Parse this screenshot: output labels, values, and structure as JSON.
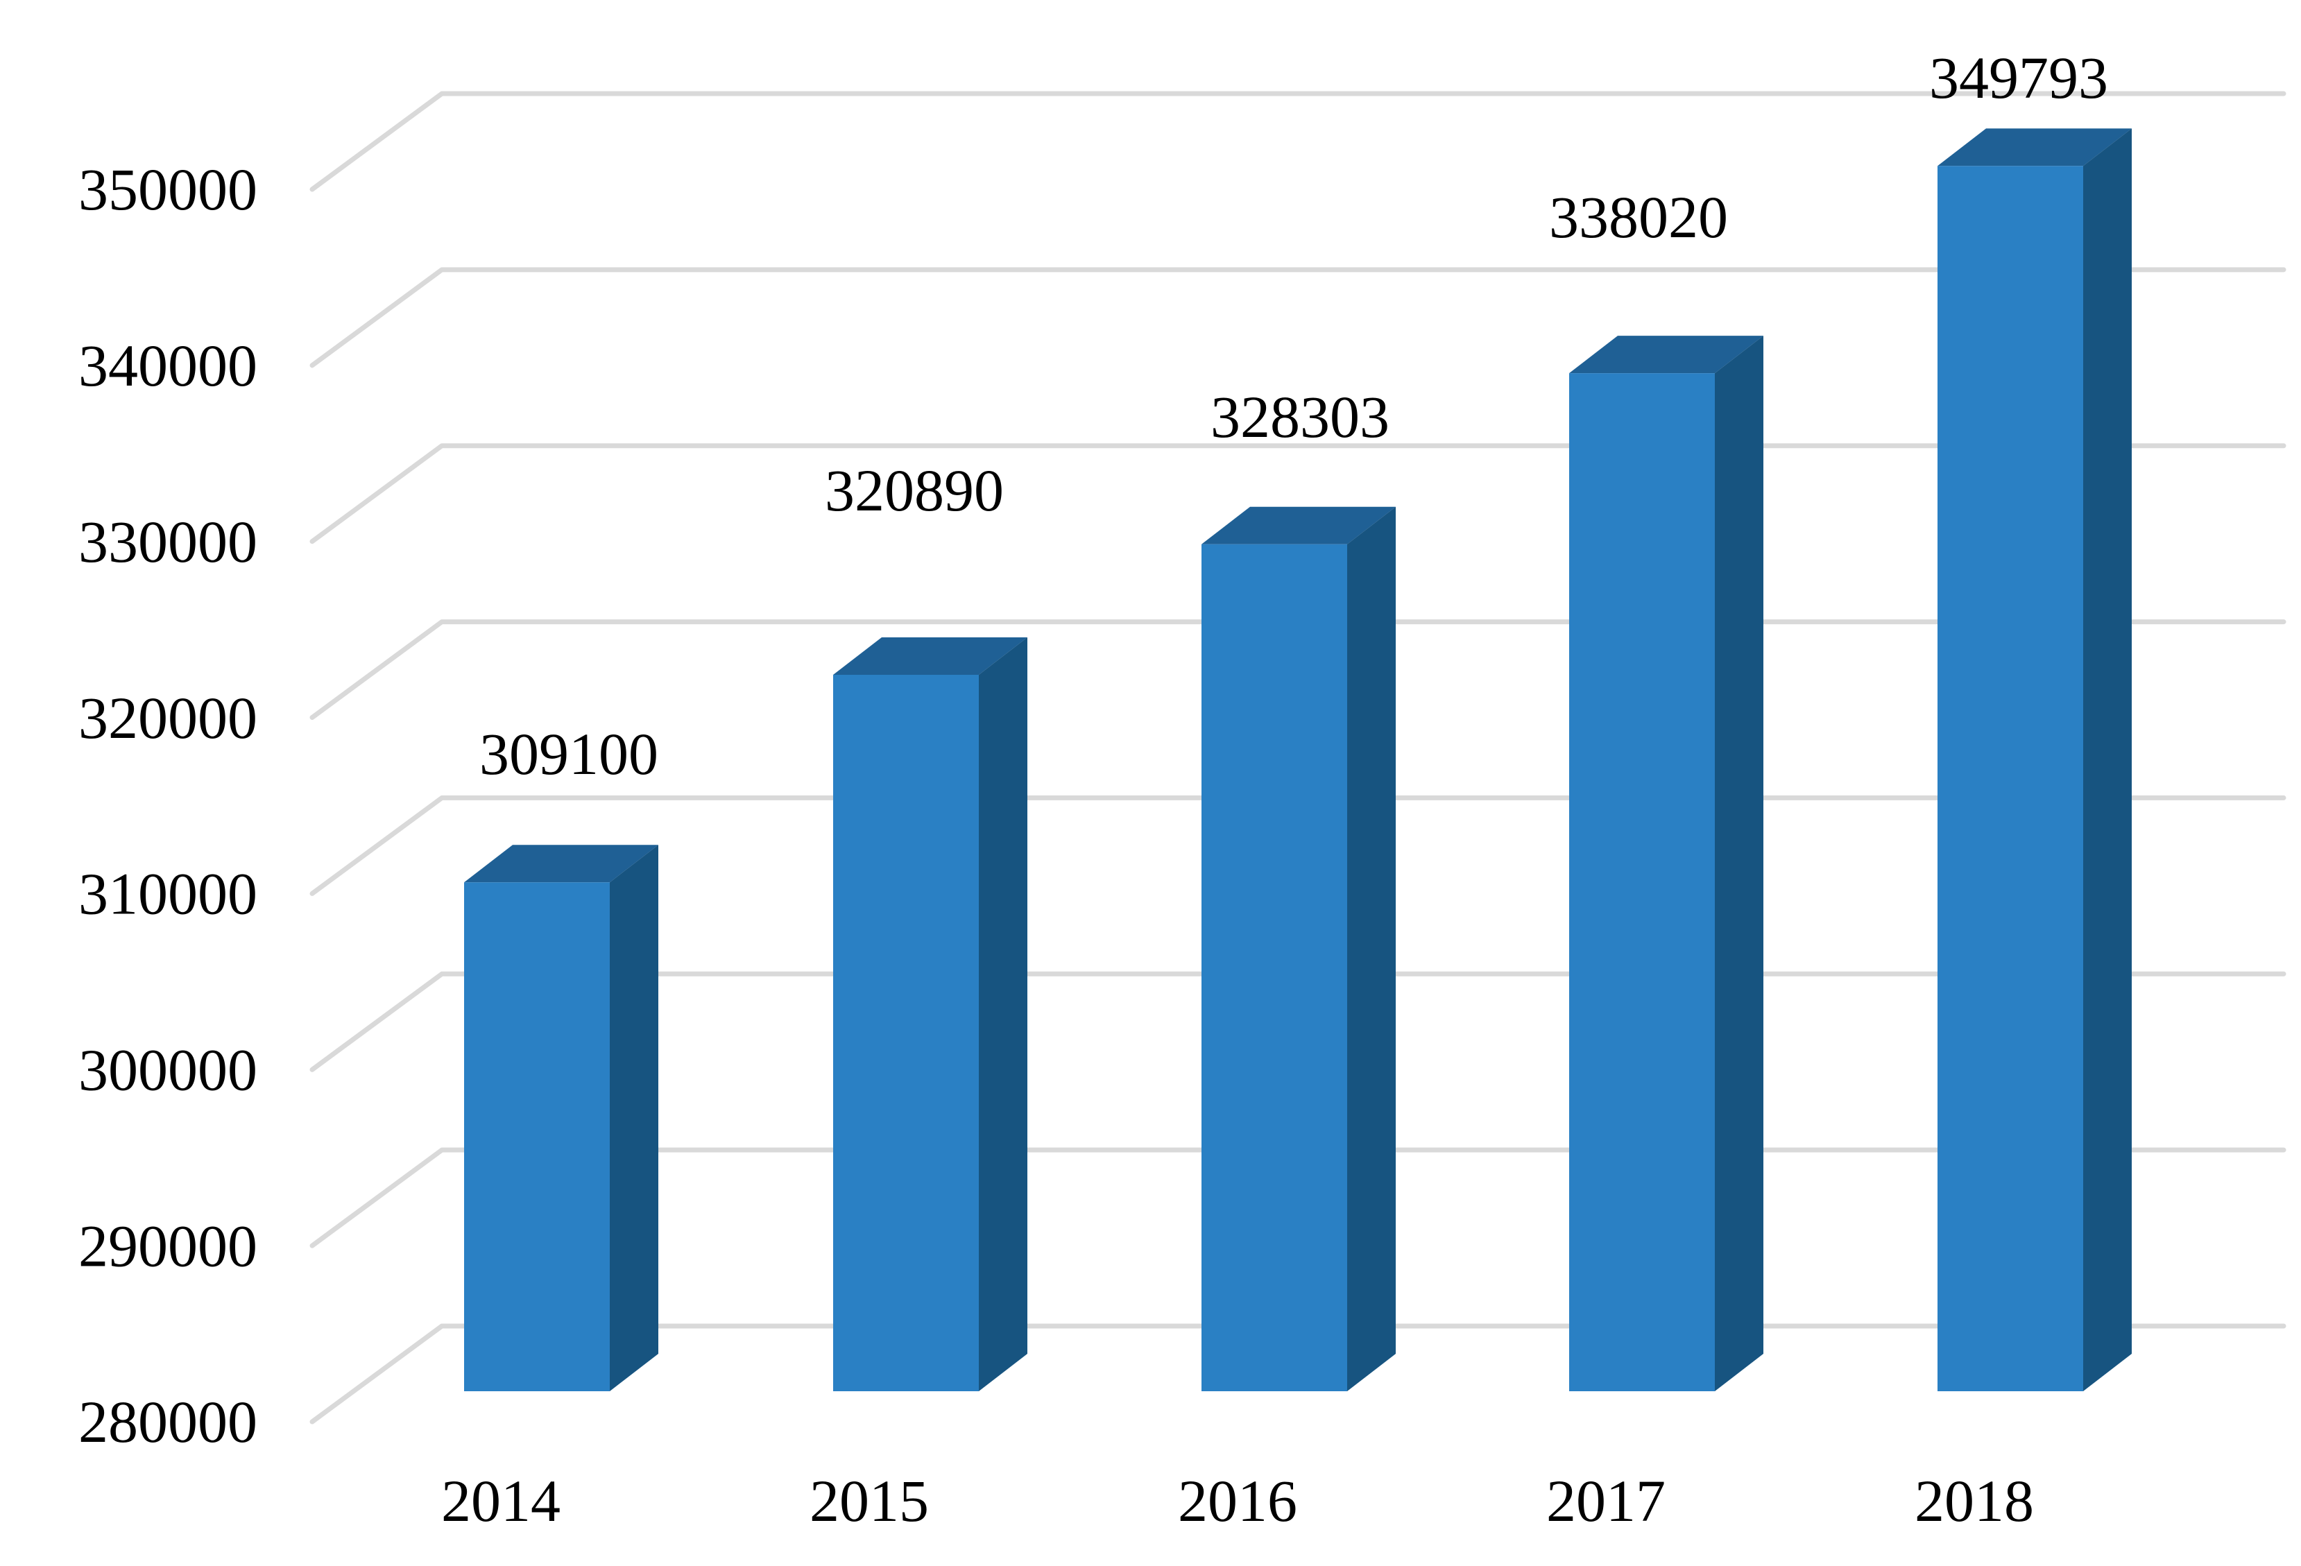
{
  "chart_data": {
    "type": "bar",
    "variant": "3d-column",
    "title": "",
    "xlabel": "",
    "ylabel": "",
    "categories": [
      "2014",
      "2015",
      "2016",
      "2017",
      "2018"
    ],
    "series": [
      {
        "name": "series-1",
        "values": [
          309100,
          320890,
          328303,
          338020,
          349793
        ]
      }
    ],
    "data_labels": [
      "309100",
      "320890",
      "328303",
      "338020",
      "349793"
    ],
    "y_axis": {
      "min": 280000,
      "max": 350000,
      "step": 10000,
      "tick_labels": [
        "280000",
        "290000",
        "300000",
        "310000",
        "320000",
        "330000",
        "340000",
        "350000"
      ]
    },
    "grid": true,
    "legend": false,
    "colors": {
      "bar_front": "#2A80C4",
      "bar_top": "#1F6095",
      "bar_side": "#175480",
      "gridline": "#D9D9D9",
      "text": "#000000",
      "background": "#FFFFFF"
    }
  }
}
